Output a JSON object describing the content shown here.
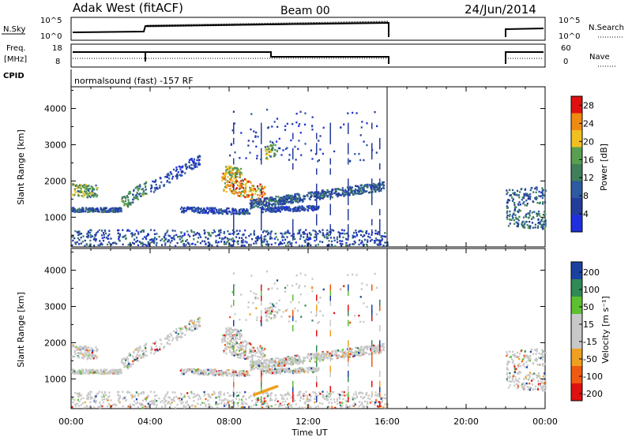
{
  "header": {
    "site": "Adak West (fitACF)",
    "beam": "Beam 00",
    "date": "24/Jun/2014"
  },
  "noise_panel": {
    "left_label": "N.Sky",
    "right_label": "N.Search",
    "left_ticks": [
      "10^5",
      "10^0"
    ],
    "right_ticks": [
      "10^5",
      "10^0"
    ]
  },
  "freq_panel": {
    "left_label_1": "Freq.",
    "left_label_2": "[MHz]",
    "right_label": "Nave",
    "left_ticks": [
      "18",
      "8"
    ],
    "right_ticks": [
      "60",
      "0"
    ]
  },
  "cpid": {
    "label": "CPID",
    "text": "normalsound (fast) -157 RF"
  },
  "colors": {
    "power_scale": [
      "#1f2fe0",
      "#243c9a",
      "#2d5aa0",
      "#3f7f5a",
      "#58a050",
      "#f0c020",
      "#f08a10",
      "#e01010"
    ],
    "velocity_scale": [
      "#e01010",
      "#f05a10",
      "#f0a020",
      "#c8c8c8",
      "#c8c8c8",
      "#5cc030",
      "#2f8a55",
      "#1a40a0"
    ]
  },
  "power_colorbar": {
    "label": "Power [dB]",
    "ticks": [
      "28",
      "24",
      "20",
      "16",
      "12",
      "8",
      "4"
    ]
  },
  "velocity_colorbar": {
    "label": "Velocity [m s⁻¹]",
    "ticks": [
      "200",
      "100",
      "50",
      "15",
      "-15",
      "-50",
      "-100",
      "-200"
    ]
  },
  "chart_data": [
    {
      "type": "heatmap",
      "title": "Power",
      "xlabel": "",
      "ylabel": "Slant Range [km]",
      "x_range_hours": [
        0,
        24
      ],
      "ylim": [
        180,
        4600
      ],
      "yticks": [
        "1000",
        "2000",
        "3000",
        "4000"
      ],
      "xticks": [
        "00:00",
        "04:00",
        "08:00",
        "12:00",
        "16:00",
        "20:00",
        "00:00"
      ],
      "data_gap_hours": [
        16,
        22
      ],
      "colorbar_range": [
        0,
        30
      ]
    },
    {
      "type": "heatmap",
      "title": "Velocity",
      "xlabel": "Time UT",
      "ylabel": "Slant Range [km]",
      "x_range_hours": [
        0,
        24
      ],
      "ylim": [
        180,
        4600
      ],
      "yticks": [
        "1000",
        "2000",
        "3000",
        "4000"
      ],
      "xticks": [
        "00:00",
        "04:00",
        "08:00",
        "12:00",
        "16:00",
        "20:00",
        "00:00"
      ],
      "data_gap_hours": [
        16,
        22
      ],
      "colorbar_range": [
        -250,
        250
      ]
    }
  ]
}
